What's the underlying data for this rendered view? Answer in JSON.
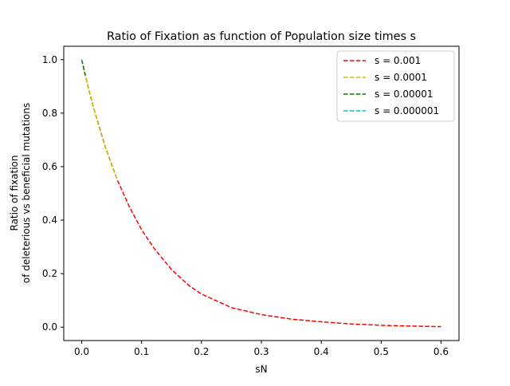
{
  "chart_data": {
    "type": "line",
    "title": "Ratio of Fixation as function of Population size times s",
    "xlabel": "sN",
    "ylabel": [
      "Ratio of fixation",
      "of deleterious vs beneficial mutations"
    ],
    "xlim": [
      -0.03,
      0.63
    ],
    "ylim": [
      -0.05,
      1.05
    ],
    "xticks": [
      0.0,
      0.1,
      0.2,
      0.3,
      0.4,
      0.5,
      0.6
    ],
    "xtick_labels": [
      "0.0",
      "0.1",
      "0.2",
      "0.3",
      "0.4",
      "0.5",
      "0.6"
    ],
    "yticks": [
      0.0,
      0.2,
      0.4,
      0.6,
      0.8,
      1.0
    ],
    "ytick_labels": [
      "0.0",
      "0.2",
      "0.4",
      "0.6",
      "0.8",
      "1.0"
    ],
    "grid": false,
    "legend_position": "top-right",
    "series": [
      {
        "name": "s = 0.001",
        "color": "#ff0000",
        "line_style": "dashed",
        "x": [
          0.0,
          0.01,
          0.02,
          0.04,
          0.06,
          0.08,
          0.1,
          0.12,
          0.15,
          0.18,
          0.2,
          0.25,
          0.3,
          0.35,
          0.4,
          0.45,
          0.5,
          0.55,
          0.6
        ],
        "y": [
          1.0,
          0.904,
          0.818,
          0.669,
          0.547,
          0.448,
          0.364,
          0.297,
          0.215,
          0.154,
          0.124,
          0.073,
          0.047,
          0.03,
          0.02,
          0.012,
          0.007,
          0.004,
          0.002
        ]
      },
      {
        "name": "s = 0.0001",
        "color": "#bfbf00",
        "line_style": "dashed",
        "x": [
          0.0,
          0.01,
          0.02,
          0.03,
          0.04,
          0.05,
          0.06
        ],
        "y": [
          1.0,
          0.904,
          0.818,
          0.741,
          0.669,
          0.606,
          0.547
        ]
      },
      {
        "name": "s = 0.00001",
        "color": "#008000",
        "line_style": "dashed",
        "x": [
          0.0,
          0.002,
          0.004,
          0.006
        ],
        "y": [
          1.0,
          0.98,
          0.961,
          0.941
        ]
      },
      {
        "name": "s = 0.000001",
        "color": "#00bfbf",
        "line_style": "dashed",
        "x": [
          0.0,
          0.0003,
          0.0006
        ],
        "y": [
          1.0,
          0.997,
          0.994
        ]
      }
    ]
  }
}
